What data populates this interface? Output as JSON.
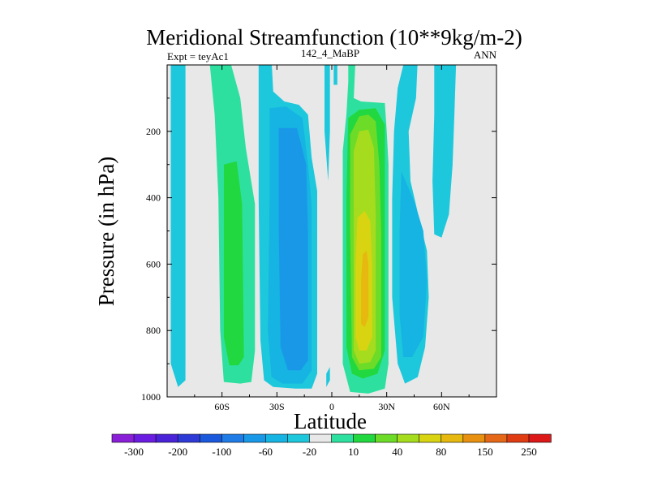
{
  "chart_data": {
    "type": "heatmap",
    "title": "Meridional Streamfunction (10**9kg/m-2)",
    "left_string": "Expt = teyAc1",
    "center_string": "142_4_MaBP",
    "right_string": "ANN",
    "xlabel": "Latitude",
    "ylabel": "Pressure (in hPa)",
    "xlim": [
      -90,
      90
    ],
    "ylim": [
      1000,
      0
    ],
    "x_ticks": [
      {
        "value": -60,
        "label": "60S"
      },
      {
        "value": -30,
        "label": "30S"
      },
      {
        "value": 0,
        "label": "0"
      },
      {
        "value": 30,
        "label": "30N"
      },
      {
        "value": 60,
        "label": "60N"
      }
    ],
    "y_ticks": [
      {
        "value": 200,
        "label": "200"
      },
      {
        "value": 400,
        "label": "400"
      },
      {
        "value": 600,
        "label": "600"
      },
      {
        "value": 800,
        "label": "800"
      },
      {
        "value": 1000,
        "label": "1000"
      }
    ],
    "background_color": "#e8e8e8",
    "colorbar": {
      "colors": [
        "#8a1fd8",
        "#6a1de0",
        "#4a23d8",
        "#2e3ad6",
        "#1a58dc",
        "#1f7be6",
        "#1a98e8",
        "#16b4e2",
        "#1ec8dc",
        "#e8e8e8",
        "#2ee0a0",
        "#22d840",
        "#6cdc28",
        "#a6dc1e",
        "#d8d412",
        "#e6b810",
        "#e89010",
        "#e46818",
        "#e03c14",
        "#dc1818"
      ],
      "labels": [
        "-300",
        "-200",
        "-100",
        "-60",
        "-20",
        "10",
        "40",
        "80",
        "150",
        "250"
      ],
      "label_boundaries": [
        1,
        3,
        5,
        7,
        9,
        11,
        13,
        15,
        17,
        19
      ]
    },
    "regions": [
      {
        "name": "sh-outer-cell",
        "color": "#1ec8dc",
        "outline": [
          [
            -88,
            -20
          ],
          [
            -80,
            -20
          ],
          [
            -80,
            950
          ],
          [
            -84,
            970
          ],
          [
            -88,
            900
          ]
        ]
      },
      {
        "name": "sh-ferrel-outer",
        "color": "#2ee0a0",
        "outline": [
          [
            -67,
            -20
          ],
          [
            -56,
            -20
          ],
          [
            -50,
            100
          ],
          [
            -47,
            250
          ],
          [
            -42,
            420
          ],
          [
            -42,
            860
          ],
          [
            -44,
            955
          ],
          [
            -50,
            960
          ],
          [
            -59,
            955
          ],
          [
            -61,
            800
          ],
          [
            -62,
            400
          ],
          [
            -64,
            150
          ]
        ]
      },
      {
        "name": "sh-ferrel-mid",
        "color": "#22d840",
        "outline": [
          [
            -59,
            300
          ],
          [
            -52,
            290
          ],
          [
            -49,
            420
          ],
          [
            -48,
            880
          ],
          [
            -51,
            905
          ],
          [
            -56,
            905
          ],
          [
            -59,
            820
          ]
        ]
      },
      {
        "name": "sh-hadley-outer",
        "color": "#1ec8dc",
        "outline": [
          [
            -40,
            -20
          ],
          [
            -33,
            -20
          ],
          [
            -32,
            80
          ],
          [
            -26,
            110
          ],
          [
            -18,
            120
          ],
          [
            -13,
            150
          ],
          [
            -11,
            280
          ],
          [
            -8,
            380
          ],
          [
            -8,
            930
          ],
          [
            -11,
            975
          ],
          [
            -20,
            975
          ],
          [
            -32,
            970
          ],
          [
            -37,
            950
          ],
          [
            -39,
            830
          ],
          [
            -40,
            400
          ]
        ]
      },
      {
        "name": "sh-hadley-mid",
        "color": "#16b4e2",
        "outline": [
          [
            -34,
            130
          ],
          [
            -25,
            125
          ],
          [
            -16,
            160
          ],
          [
            -13,
            300
          ],
          [
            -11,
            420
          ],
          [
            -11,
            920
          ],
          [
            -16,
            960
          ],
          [
            -27,
            960
          ],
          [
            -33,
            940
          ],
          [
            -35,
            800
          ],
          [
            -34,
            400
          ]
        ]
      },
      {
        "name": "sh-hadley-inner",
        "color": "#1a98e8",
        "outline": [
          [
            -29,
            190
          ],
          [
            -19,
            190
          ],
          [
            -14,
            300
          ],
          [
            -13,
            500
          ],
          [
            -13,
            890
          ],
          [
            -17,
            920
          ],
          [
            -24,
            920
          ],
          [
            -28,
            850
          ],
          [
            -29,
            500
          ]
        ]
      },
      {
        "name": "nh-hadley-outer",
        "color": "#2ee0a0",
        "outline": [
          [
            9,
            -20
          ],
          [
            13,
            -20
          ],
          [
            12,
            100
          ],
          [
            16,
            110
          ],
          [
            29,
            115
          ],
          [
            30,
            200
          ],
          [
            31,
            300
          ],
          [
            31,
            900
          ],
          [
            29,
            975
          ],
          [
            20,
            990
          ],
          [
            10,
            985
          ],
          [
            6,
            900
          ],
          [
            6,
            260
          ],
          [
            8,
            150
          ],
          [
            9,
            50
          ]
        ]
      },
      {
        "name": "nh-hadley-mid",
        "color": "#22d840",
        "outline": [
          [
            9,
            160
          ],
          [
            15,
            135
          ],
          [
            24,
            130
          ],
          [
            29,
            180
          ],
          [
            29,
            400
          ],
          [
            29,
            860
          ],
          [
            25,
            930
          ],
          [
            17,
            945
          ],
          [
            11,
            930
          ],
          [
            8,
            850
          ],
          [
            8,
            400
          ]
        ]
      },
      {
        "name": "nh-hadley-inner",
        "color": "#6cdc28",
        "outline": [
          [
            10,
            210
          ],
          [
            15,
            155
          ],
          [
            20,
            150
          ],
          [
            24,
            170
          ],
          [
            26,
            300
          ],
          [
            27,
            500
          ],
          [
            27,
            880
          ],
          [
            23,
            915
          ],
          [
            15,
            920
          ],
          [
            11,
            880
          ],
          [
            10,
            500
          ]
        ]
      },
      {
        "name": "nh-hadley-core",
        "color": "#a6dc1e",
        "outline": [
          [
            12,
            260
          ],
          [
            15,
            200
          ],
          [
            20,
            195
          ],
          [
            23,
            250
          ],
          [
            24,
            450
          ],
          [
            24,
            860
          ],
          [
            21,
            895
          ],
          [
            15,
            900
          ],
          [
            12,
            860
          ],
          [
            12,
            500
          ]
        ]
      },
      {
        "name": "nh-hadley-peak",
        "color": "#d8d412",
        "outline": [
          [
            14,
            460
          ],
          [
            18,
            440
          ],
          [
            21,
            470
          ],
          [
            22,
            600
          ],
          [
            22,
            820
          ],
          [
            19,
            860
          ],
          [
            15,
            860
          ],
          [
            13,
            820
          ],
          [
            13,
            600
          ]
        ]
      },
      {
        "name": "nh-hadley-max",
        "color": "#e6b810",
        "outline": [
          [
            17,
            570
          ],
          [
            19,
            560
          ],
          [
            20,
            600
          ],
          [
            20,
            760
          ],
          [
            18,
            790
          ],
          [
            16,
            780
          ],
          [
            16,
            650
          ]
        ]
      },
      {
        "name": "nh-ferrel-outer",
        "color": "#1ec8dc",
        "outline": [
          [
            36,
            70
          ],
          [
            40,
            -20
          ],
          [
            47,
            -20
          ],
          [
            46,
            100
          ],
          [
            42,
            200
          ],
          [
            43,
            350
          ],
          [
            48,
            470
          ],
          [
            52,
            560
          ],
          [
            53,
            700
          ],
          [
            51,
            850
          ],
          [
            47,
            940
          ],
          [
            40,
            960
          ],
          [
            36,
            900
          ],
          [
            33,
            700
          ],
          [
            33,
            400
          ],
          [
            34,
            200
          ]
        ]
      },
      {
        "name": "nh-ferrel-mid",
        "color": "#16b4e2",
        "outline": [
          [
            38,
            320
          ],
          [
            45,
            410
          ],
          [
            50,
            500
          ],
          [
            52,
            650
          ],
          [
            50,
            820
          ],
          [
            44,
            880
          ],
          [
            39,
            880
          ],
          [
            37,
            750
          ],
          [
            37,
            500
          ]
        ]
      },
      {
        "name": "nh-polar-cell",
        "color": "#1ec8dc",
        "outline": [
          [
            56,
            -20
          ],
          [
            68,
            -20
          ],
          [
            67,
            150
          ],
          [
            66,
            300
          ],
          [
            64,
            450
          ],
          [
            60,
            520
          ],
          [
            56,
            510
          ],
          [
            55,
            350
          ],
          [
            56,
            150
          ]
        ]
      },
      {
        "name": "eq-sliver-upper",
        "color": "#1ec8dc",
        "outline": [
          [
            -4,
            -20
          ],
          [
            -1,
            -20
          ],
          [
            -1,
            200
          ],
          [
            -2,
            350
          ],
          [
            -4,
            200
          ]
        ]
      },
      {
        "name": "eq-sliver-lower",
        "color": "#1ec8dc",
        "outline": [
          [
            -3,
            930
          ],
          [
            -1,
            910
          ],
          [
            -1,
            950
          ],
          [
            -3,
            970
          ]
        ]
      },
      {
        "name": "eq-sliver-small",
        "color": "#1ec8dc",
        "outline": [
          [
            1,
            -20
          ],
          [
            3,
            -20
          ],
          [
            3,
            60
          ],
          [
            1,
            60
          ]
        ]
      }
    ]
  }
}
